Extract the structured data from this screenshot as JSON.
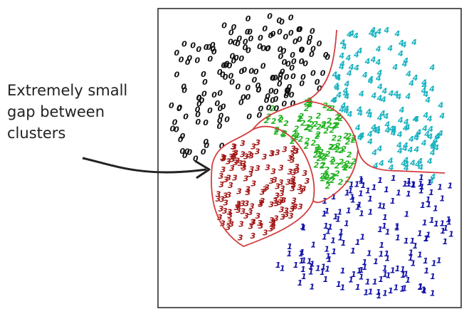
{
  "annotation": {
    "lines": [
      "Extremely small",
      "gap between",
      "clusters"
    ]
  },
  "clusters": [
    {
      "label": "0",
      "color": "#111111"
    },
    {
      "label": "4",
      "color": "#1bb3c0"
    },
    {
      "label": "2",
      "color": "#22b322"
    },
    {
      "label": "3",
      "color": "#a31515"
    },
    {
      "label": "1",
      "color": "#1010a8"
    }
  ]
}
